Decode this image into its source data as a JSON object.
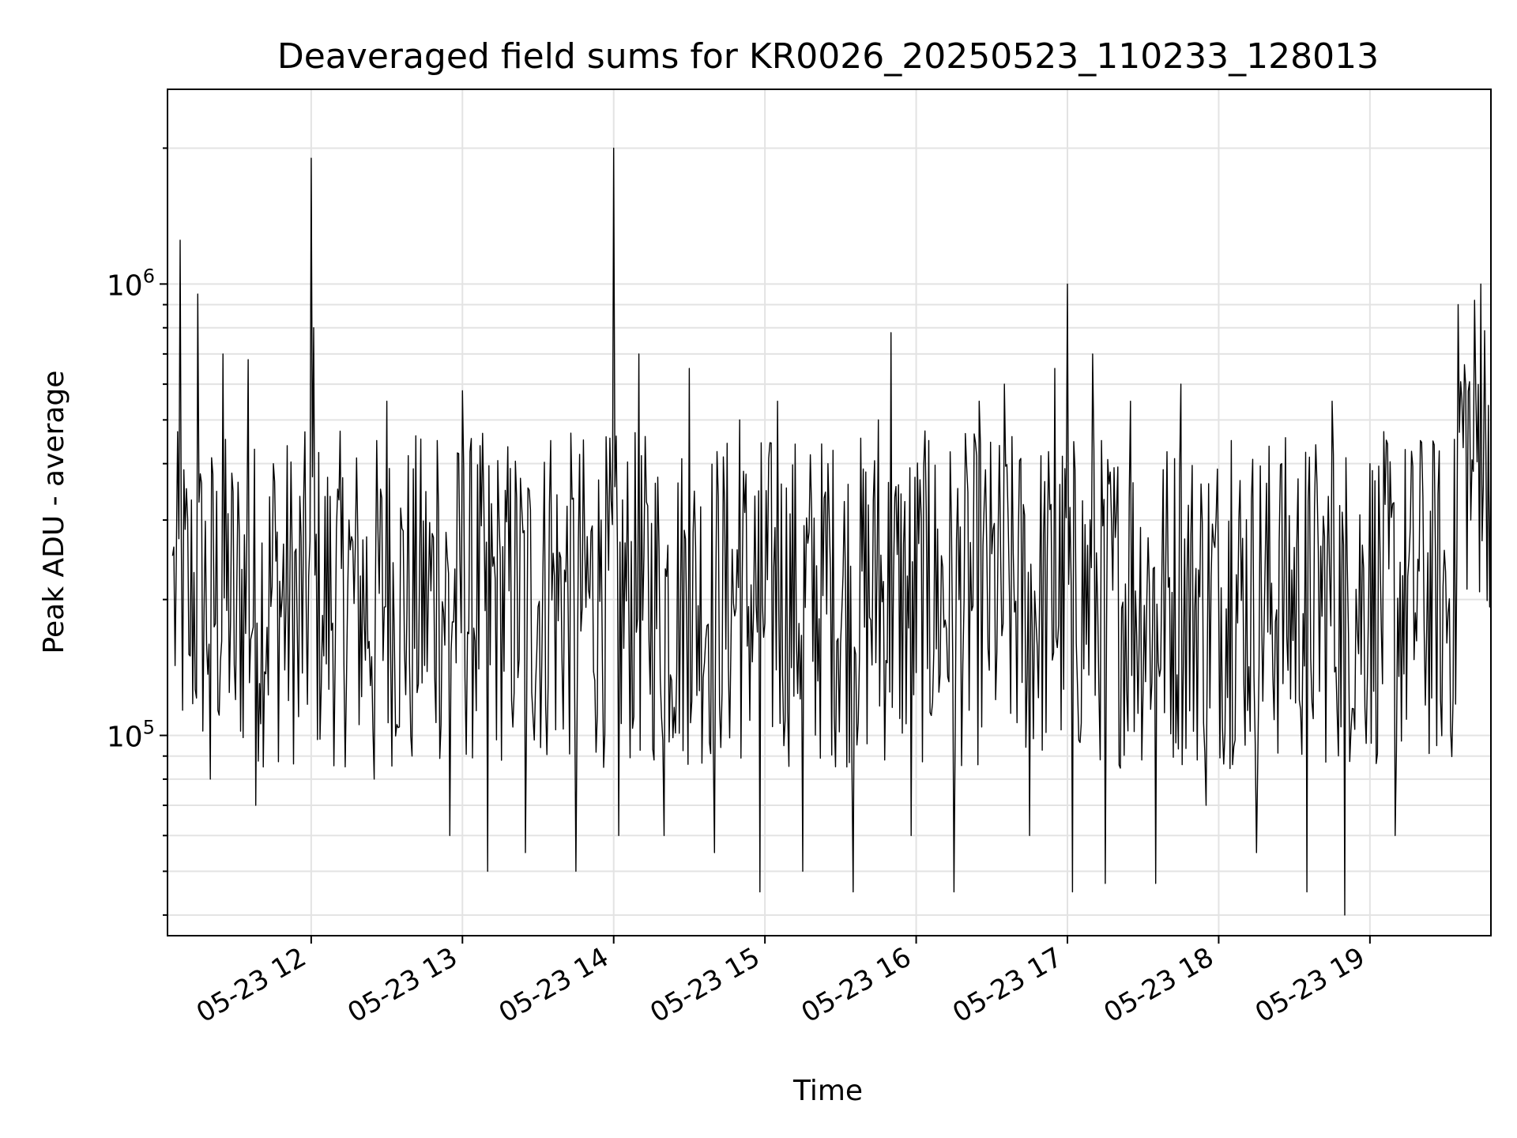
{
  "chart_data": {
    "type": "line",
    "title": "Deaveraged field sums for KR0026_20250523_110233_128013",
    "xlabel": "Time",
    "ylabel": "Peak ADU - average",
    "yscale": "log",
    "xlim": [
      "05-23 11:03",
      "05-23 19:48"
    ],
    "ylim": [
      36000,
      2700000
    ],
    "x_ticks": [
      {
        "at": "05-23 12:00",
        "label": "05-23 12"
      },
      {
        "at": "05-23 13:00",
        "label": "05-23 13"
      },
      {
        "at": "05-23 14:00",
        "label": "05-23 14"
      },
      {
        "at": "05-23 15:00",
        "label": "05-23 15"
      },
      {
        "at": "05-23 16:00",
        "label": "05-23 16"
      },
      {
        "at": "05-23 17:00",
        "label": "05-23 17"
      },
      {
        "at": "05-23 18:00",
        "label": "05-23 18"
      },
      {
        "at": "05-23 19:00",
        "label": "05-23 19"
      }
    ],
    "y_ticks": [
      {
        "value": 100000,
        "base": "10",
        "exp": "5"
      },
      {
        "value": 1000000,
        "base": "10",
        "exp": "6"
      }
    ],
    "grid": true,
    "line_color": "#000000",
    "series": [
      {
        "values": [
          [
            "05-23 11:05",
            250000
          ],
          [
            "05-23 11:08",
            1250000
          ],
          [
            "05-23 11:12",
            150000
          ],
          [
            "05-23 11:15",
            950000
          ],
          [
            "05-23 11:20",
            80000
          ],
          [
            "05-23 11:25",
            700000
          ],
          [
            "05-23 11:30",
            120000
          ],
          [
            "05-23 11:35",
            680000
          ],
          [
            "05-23 11:38",
            70000
          ],
          [
            "05-23 11:45",
            400000
          ],
          [
            "05-23 11:55",
            110000
          ],
          [
            "05-23 12:00",
            1900000
          ],
          [
            "05-23 12:01",
            800000
          ],
          [
            "05-23 12:05",
            150000
          ],
          [
            "05-23 12:15",
            300000
          ],
          [
            "05-23 12:25",
            80000
          ],
          [
            "05-23 12:30",
            550000
          ],
          [
            "05-23 12:40",
            90000
          ],
          [
            "05-23 12:50",
            450000
          ],
          [
            "05-23 12:55",
            60000
          ],
          [
            "05-23 13:00",
            580000
          ],
          [
            "05-23 13:10",
            50000
          ],
          [
            "05-23 13:15",
            250000
          ],
          [
            "05-23 13:25",
            55000
          ],
          [
            "05-23 13:35",
            450000
          ],
          [
            "05-23 13:45",
            50000
          ],
          [
            "05-23 13:55",
            300000
          ],
          [
            "05-23 14:00",
            2000000
          ],
          [
            "05-23 14:02",
            60000
          ],
          [
            "05-23 14:10",
            700000
          ],
          [
            "05-23 14:20",
            60000
          ],
          [
            "05-23 14:30",
            650000
          ],
          [
            "05-23 14:40",
            55000
          ],
          [
            "05-23 14:50",
            500000
          ],
          [
            "05-23 14:58",
            45000
          ],
          [
            "05-23 15:05",
            550000
          ],
          [
            "05-23 15:15",
            50000
          ],
          [
            "05-23 15:25",
            400000
          ],
          [
            "05-23 15:35",
            45000
          ],
          [
            "05-23 15:45",
            500000
          ],
          [
            "05-23 15:50",
            780000
          ],
          [
            "05-23 15:58",
            60000
          ],
          [
            "05-23 16:05",
            450000
          ],
          [
            "05-23 16:15",
            45000
          ],
          [
            "05-23 16:25",
            550000
          ],
          [
            "05-23 16:35",
            600000
          ],
          [
            "05-23 16:45",
            60000
          ],
          [
            "05-23 16:55",
            650000
          ],
          [
            "05-23 17:00",
            1000000
          ],
          [
            "05-23 17:02",
            45000
          ],
          [
            "05-23 17:10",
            700000
          ],
          [
            "05-23 17:15",
            47000
          ],
          [
            "05-23 17:25",
            550000
          ],
          [
            "05-23 17:35",
            47000
          ],
          [
            "05-23 17:45",
            600000
          ],
          [
            "05-23 17:55",
            70000
          ],
          [
            "05-23 18:05",
            450000
          ],
          [
            "05-23 18:15",
            55000
          ],
          [
            "05-23 18:25",
            400000
          ],
          [
            "05-23 18:35",
            45000
          ],
          [
            "05-23 18:45",
            550000
          ],
          [
            "05-23 18:50",
            40000
          ],
          [
            "05-23 19:00",
            400000
          ],
          [
            "05-23 19:10",
            60000
          ],
          [
            "05-23 19:20",
            450000
          ],
          [
            "05-23 19:28",
            120000
          ],
          [
            "05-23 19:35",
            900000
          ],
          [
            "05-23 19:40",
            300000
          ],
          [
            "05-23 19:44",
            1000000
          ],
          [
            "05-23 19:48",
            400000
          ]
        ]
      }
    ]
  }
}
